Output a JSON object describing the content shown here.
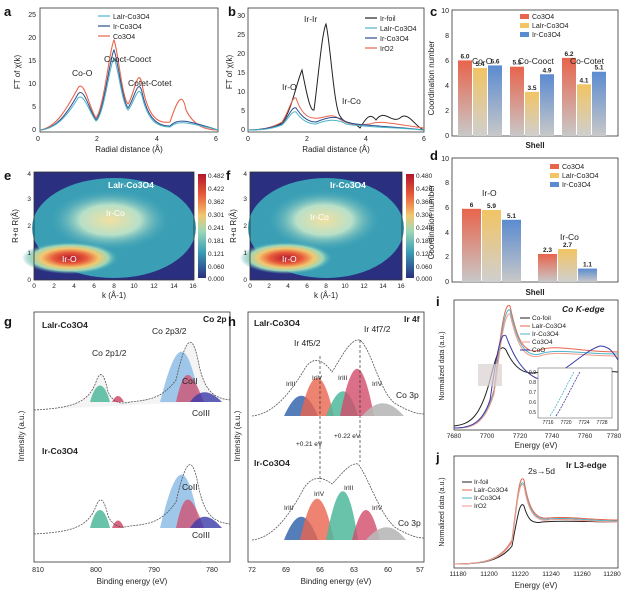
{
  "panels": {
    "a": {
      "label": "a",
      "legend": [
        "LaIr-Co3O4",
        "Ir-Co3O4",
        "Co3O4"
      ],
      "legend_colors": [
        "#4bb4c8",
        "#2a4d8f",
        "#e8644c"
      ],
      "annotations": [
        "Co-O",
        "Cooct-Cooct",
        "Cotet-Cotet"
      ],
      "xlabel": "Radial distance (Å)",
      "ylabel": "FT of χ(k)",
      "xticks": [
        "0",
        "2",
        "4",
        "6"
      ],
      "yticks": [
        "0",
        "5",
        "10",
        "15",
        "20",
        "25"
      ]
    },
    "b": {
      "label": "b",
      "legend": [
        "Ir-foil",
        "LaIr-Co3O4",
        "Ir-Co3O4",
        "IrO2"
      ],
      "legend_colors": [
        "#222222",
        "#4bb4c8",
        "#2a4d8f",
        "#e8644c"
      ],
      "annotations": [
        "Ir-Ir",
        "Ir-O",
        "Ir-Co"
      ],
      "xlabel": "Radial distance (Å)",
      "ylabel": "FT of χ(k)",
      "xticks": [
        "0",
        "2",
        "4",
        "6"
      ],
      "yticks": [
        "0",
        "5",
        "10",
        "15",
        "20",
        "25",
        "30"
      ]
    },
    "c": {
      "label": "c",
      "legend": [
        "Co3O4",
        "LaIr-Co3O4",
        "Ir-Co3O4"
      ],
      "xlabel": "Shell",
      "ylabel": "Coordination number",
      "groups": [
        "Co-O",
        "Co-Cooct",
        "Co-Cotet"
      ],
      "yticks": [
        "0",
        "2",
        "4",
        "6",
        "8",
        "10"
      ]
    },
    "d": {
      "label": "d",
      "legend": [
        "Co3O4",
        "LaIr-Co3O4",
        "Ir-Co3O4"
      ],
      "xlabel": "Shell",
      "ylabel": "Coordination number",
      "groups": [
        "Ir-O",
        "Ir-Co"
      ],
      "yticks": [
        "0",
        "2",
        "4",
        "6",
        "8",
        "10"
      ]
    },
    "e": {
      "label": "e",
      "title": "LaIr-Co3O4",
      "annotations": [
        "Ir-Co",
        "Ir-O"
      ],
      "xlabel": "k (Å-1)",
      "ylabel": "R+α R(Å)",
      "xticks": [
        "0",
        "2",
        "4",
        "6",
        "8",
        "10",
        "12",
        "14",
        "16"
      ],
      "yticks": [
        "0",
        "1",
        "2",
        "3",
        "4"
      ],
      "colorbar": [
        "0.482",
        "0.422",
        "0.362",
        "0.301",
        "0.241",
        "0.181",
        "0.121",
        "0.060",
        "0.000"
      ]
    },
    "f": {
      "label": "f",
      "title": "Ir-Co3O4",
      "annotations": [
        "Ir-Co",
        "Ir-O"
      ],
      "xlabel": "k (Å-1)",
      "ylabel": "R+α R(Å)",
      "xticks": [
        "0",
        "2",
        "4",
        "6",
        "8",
        "10",
        "12",
        "14",
        "16"
      ],
      "yticks": [
        "0",
        "1",
        "2",
        "3",
        "4"
      ],
      "colorbar": [
        "0.480",
        "0.420",
        "0.360",
        "0.300",
        "0.240",
        "0.180",
        "0.120",
        "0.060",
        "0.000"
      ]
    },
    "g": {
      "label": "g",
      "top_title": "LaIr-Co3O4",
      "bottom_title": "Ir-Co3O4",
      "corner": "Co 2p",
      "annotations": [
        "Co 2p1/2",
        "Co 2p3/2",
        "CoII",
        "CoIII",
        "CoII",
        "CoIII"
      ],
      "xlabel": "Binding energy (eV)",
      "ylabel": "Intensity (a.u.)",
      "xticks": [
        "810",
        "800",
        "790",
        "780"
      ]
    },
    "h": {
      "label": "h",
      "top_title": "LaIr-Co3O4",
      "bottom_title": "Ir-Co3O4",
      "corner": "Ir 4f",
      "annotations": [
        "Ir 4f5/2",
        "Ir 4f7/2",
        "IrIII",
        "IrIV",
        "IrIII",
        "IrIV",
        "Co 3p",
        "+0.21 eV",
        "+0.22 eV",
        "IrIII",
        "IrIV",
        "IrIII",
        "IrIV",
        "Co 3p"
      ],
      "xlabel": "Binding energy (eV)",
      "ylabel": "Intensity (a.u.)",
      "xticks": [
        "72",
        "69",
        "66",
        "63",
        "60",
        "57"
      ]
    },
    "i": {
      "label": "i",
      "title": "Co K-edge",
      "legend": [
        "Co-foil",
        "LaIr-Co3O4",
        "Ir-Co3O4",
        "Co3O4",
        "CoO"
      ],
      "legend_colors": [
        "#222222",
        "#e8644c",
        "#4bb4c8",
        "#f29a8a",
        "#3a3aa8"
      ],
      "xlabel": "Energy (eV)",
      "ylabel": "Normalized data (a.u.)",
      "xticks": [
        "7680",
        "7700",
        "7720",
        "7740",
        "7760",
        "7780"
      ],
      "inset_xticks": [
        "7716",
        "7720",
        "7724",
        "7728"
      ],
      "inset_yticks": [
        "0.9",
        "0.8",
        "0.7",
        "0.6",
        "0.5"
      ]
    },
    "j": {
      "label": "j",
      "title": "Ir L3-edge",
      "legend": [
        "Ir-foil",
        "LaIr-Co3O4",
        "Ir-Co3O4",
        "IrO2"
      ],
      "legend_colors": [
        "#222222",
        "#e8644c",
        "#4bb4c8",
        "#f29a8a"
      ],
      "annotation": "2s→5d",
      "xlabel": "Energy (eV)",
      "ylabel": "Normalized data (a.u.)",
      "xticks": [
        "11180",
        "11200",
        "11220",
        "11240",
        "11260",
        "11280"
      ]
    }
  },
  "chart_data": [
    {
      "type": "bar",
      "panel": "c",
      "categories": [
        "Co-O",
        "Co-Cooct",
        "Co-Cotet"
      ],
      "series": [
        {
          "name": "Co3O4",
          "values": [
            6.0,
            5.5,
            6.2
          ]
        },
        {
          "name": "LaIr-Co3O4",
          "values": [
            5.4,
            3.5,
            4.1
          ]
        },
        {
          "name": "Ir-Co3O4",
          "values": [
            5.6,
            4.9,
            5.1
          ]
        }
      ],
      "labels": [
        [
          "6.0",
          "5.5",
          "6.2"
        ],
        [
          "5.4",
          "3.5",
          "4.1"
        ],
        [
          "5.6",
          "4.9",
          "5.1"
        ]
      ],
      "colors": [
        "#e8644c",
        "#f2c464",
        "#5b8bd0"
      ],
      "ylim": [
        0,
        10
      ]
    },
    {
      "type": "bar",
      "panel": "d",
      "categories": [
        "Ir-O",
        "Ir-Co"
      ],
      "series": [
        {
          "name": "Co3O4",
          "values": [
            6,
            2.3
          ]
        },
        {
          "name": "LaIr-Co3O4",
          "values": [
            5.9,
            2.7
          ]
        },
        {
          "name": "Ir-Co3O4",
          "values": [
            5.1,
            1.1
          ]
        }
      ],
      "labels": [
        [
          "6",
          "2.3"
        ],
        [
          "5.9",
          "2.7"
        ],
        [
          "5.1",
          "1.1"
        ]
      ],
      "colors": [
        "#e8644c",
        "#f2c464",
        "#5b8bd0"
      ],
      "ylim": [
        0,
        10
      ]
    }
  ]
}
